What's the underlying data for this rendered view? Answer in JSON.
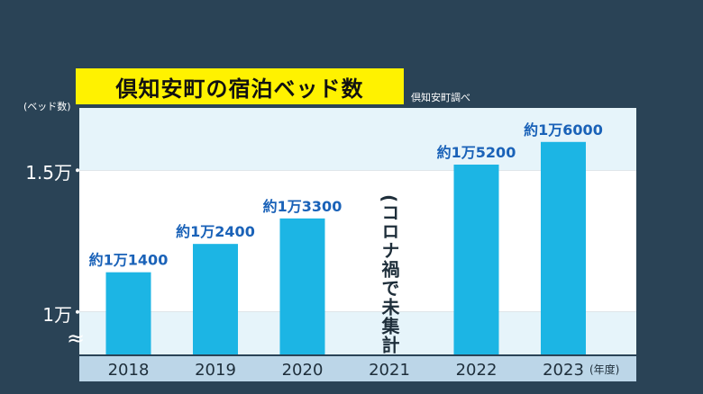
{
  "title": "倶知安町の宿泊ベッド数",
  "source": "倶知安町調べ",
  "y_unit_label": "(ベッド数)",
  "x_unit_label": "(年度)",
  "colors": {
    "background": "#2a4356",
    "title_bg": "#fff200",
    "plot_band_light": "#e6f4fa",
    "plot_band_white": "#ffffff",
    "bar": "#1cb5e4",
    "bar_label": "#1a62b8",
    "axis_band": "#bcd6e8",
    "axis_text": "#1e2e3a"
  },
  "chart_data": {
    "type": "bar",
    "title": "倶知安町の宿泊ベッド数",
    "categories": [
      "2018",
      "2019",
      "2020",
      "2021",
      "2022",
      "2023"
    ],
    "values": [
      11400,
      12400,
      13300,
      null,
      15200,
      16000
    ],
    "data_labels": [
      "約1万1400",
      "約1万2400",
      "約1万3300",
      "",
      "約1万5200",
      "約1万6000"
    ],
    "annotations": [
      {
        "category": "2021",
        "text": "(コロナ禍で未集計)"
      }
    ],
    "y_ticks": [
      {
        "value": 10000,
        "label": "1万"
      },
      {
        "value": 15000,
        "label": "1.5万"
      }
    ],
    "ylim": [
      8500,
      17200
    ],
    "axis_break": true,
    "break_symbol": "≈",
    "xlabel": "(年度)",
    "ylabel": "(ベッド数)",
    "grid": false
  }
}
